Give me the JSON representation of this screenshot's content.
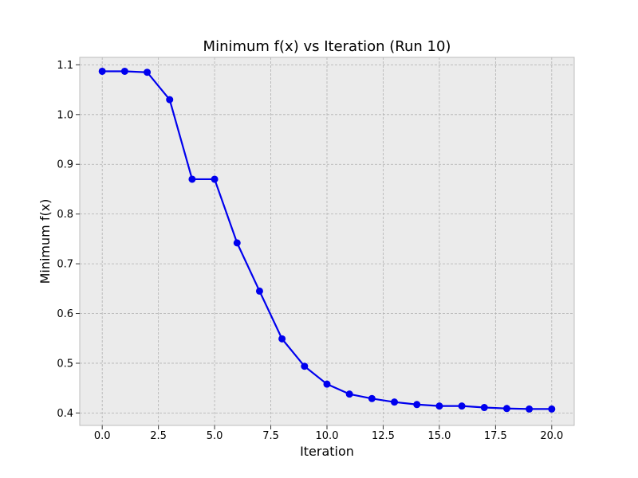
{
  "chart_data": {
    "type": "line",
    "title": "Minimum f(x) vs Iteration (Run 10)",
    "xlabel": "Iteration",
    "ylabel": "Minimum f(x)",
    "xlim": [
      -1.0,
      21.0
    ],
    "ylim": [
      0.375,
      1.115
    ],
    "xticks": [
      0.0,
      2.5,
      5.0,
      7.5,
      10.0,
      12.5,
      15.0,
      17.5,
      20.0
    ],
    "xtick_labels": [
      "0.0",
      "2.5",
      "5.0",
      "7.5",
      "10.0",
      "12.5",
      "15.0",
      "17.5",
      "20.0"
    ],
    "yticks": [
      0.4,
      0.5,
      0.6,
      0.7,
      0.8,
      0.9,
      1.0,
      1.1
    ],
    "ytick_labels": [
      "0.4",
      "0.5",
      "0.6",
      "0.7",
      "0.8",
      "0.9",
      "1.0",
      "1.1"
    ],
    "grid": true,
    "series": [
      {
        "color": "#0000ee",
        "marker": "circle",
        "x": [
          0,
          1,
          2,
          3,
          4,
          5,
          6,
          7,
          8,
          9,
          10,
          11,
          12,
          13,
          14,
          15,
          16,
          17,
          18,
          19,
          20
        ],
        "y": [
          1.087,
          1.087,
          1.085,
          1.03,
          0.87,
          0.87,
          0.742,
          0.645,
          0.549,
          0.494,
          0.458,
          0.438,
          0.429,
          0.422,
          0.417,
          0.414,
          0.414,
          0.411,
          0.409,
          0.408,
          0.408
        ]
      }
    ]
  },
  "colors": {
    "plot_background": "#ebebeb",
    "grid": "#b0b0b0",
    "axes_edge": "#bcbcbc"
  }
}
